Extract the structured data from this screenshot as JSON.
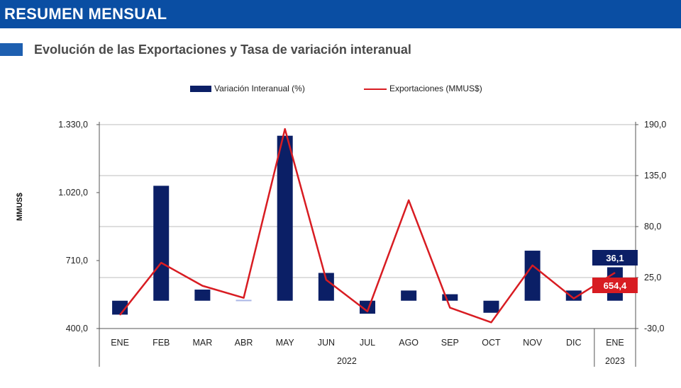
{
  "header": {
    "banner_title": "RESUMEN MENSUAL",
    "subtitle": "Evolución de las Exportaciones y Tasa de variación interanual"
  },
  "colors": {
    "banner": "#0a4ea3",
    "bar": "#0b1f66",
    "bar_light": "#aab6e6",
    "line": "#d81c22",
    "grid": "#bdbdbd"
  },
  "chart_data": {
    "type": "bar",
    "categories": [
      "ENE",
      "FEB",
      "MAR",
      "ABR",
      "MAY",
      "JUN",
      "JUL",
      "AGO",
      "SEP",
      "OCT",
      "NOV",
      "DIC",
      "ENE"
    ],
    "year_groups": [
      {
        "label": "2022",
        "from": 0,
        "to": 11
      },
      {
        "label": "2023",
        "from": 12,
        "to": 12
      }
    ],
    "series": [
      {
        "name": "Variación Interanual   (%)",
        "type": "bar",
        "axis": "right",
        "values": [
          -15,
          124,
          12,
          1,
          178,
          30,
          -14,
          11,
          7,
          -13,
          54,
          11,
          36.1
        ]
      },
      {
        "name": "Exportaciones (MMUS$)",
        "type": "line",
        "axis": "left",
        "values": [
          462,
          700,
          595,
          540,
          1310,
          622,
          478,
          985,
          495,
          428,
          688,
          537,
          654.4
        ]
      }
    ],
    "yleft": {
      "label": "MMUS$",
      "ticks": [
        "1.330,0",
        "1.020,0",
        "710,0",
        "400,0"
      ],
      "tick_values": [
        1330,
        1020,
        710,
        400
      ],
      "range": [
        400,
        1330
      ]
    },
    "yright": {
      "ticks": [
        "190,0",
        "135,0",
        "80,0",
        "25,0",
        "-30,0"
      ],
      "tick_values": [
        190,
        135,
        80,
        25,
        -30
      ],
      "range": [
        -30,
        190
      ]
    },
    "annotations": [
      {
        "text": "36,1",
        "series": "bar",
        "index": 12,
        "bg": "#0b1f66"
      },
      {
        "text": "654,4",
        "series": "line",
        "index": 12,
        "bg": "#d81c22"
      }
    ],
    "grid": true,
    "legend_position": "top"
  }
}
